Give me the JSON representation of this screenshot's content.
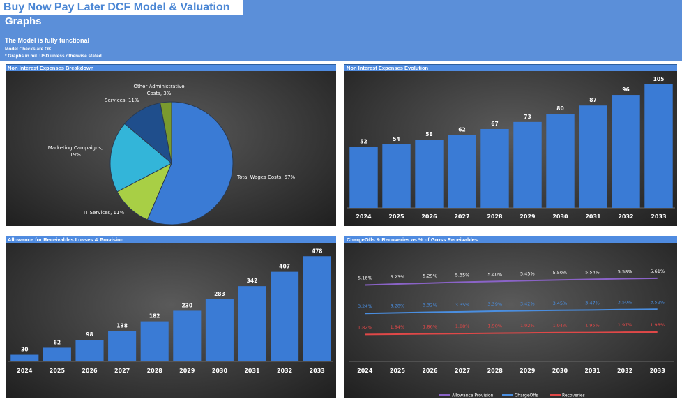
{
  "header": {
    "app_title": "Buy Now Pay Later DCF Model & Valuation",
    "sheet_title": "Graphs",
    "status": "The Model is fully functional",
    "checks": "Model Checks are OK",
    "units_note": "* Graphs in mil. USD unless otherwise stated"
  },
  "colors": {
    "header_band": "#5b8fd9",
    "panel_title": "#4f8be0",
    "bar": "#3a7bd5",
    "allowance_line": "#8a63c7",
    "chargeoffs_line": "#4a8ee0",
    "recoveries_line": "#e04848"
  },
  "panels": {
    "p1_title": "Non Interest Expenses Breakdown",
    "p2_title": "Non Interest Expenses Evolution",
    "p3_title": "Allowance for Receivables Losses & Provision",
    "p4_title": "ChargeOffs & Recoveries as % of Gross Receivables"
  },
  "chart_data": [
    {
      "type": "pie",
      "title": "Non Interest Expenses Breakdown",
      "slices": [
        {
          "label": "Total Wages Costs, 57%",
          "value": 57,
          "color": "#3a7bd5"
        },
        {
          "label": "IT Services, 11%",
          "value": 11,
          "color": "#a8cf45"
        },
        {
          "label": "Marketing Campaigns, 19%",
          "value": 19,
          "color": "#33b5d9"
        },
        {
          "label": "Services, 11%",
          "value": 11,
          "color": "#1f4e8c"
        },
        {
          "label": "Other Administrative Costs, 3%",
          "value": 3,
          "color": "#7a9a2e"
        }
      ]
    },
    {
      "type": "bar",
      "title": "Non Interest Expenses Evolution",
      "categories": [
        "2024",
        "2025",
        "2026",
        "2027",
        "2028",
        "2029",
        "2030",
        "2031",
        "2032",
        "2033"
      ],
      "values": [
        52,
        54,
        58,
        62,
        67,
        73,
        80,
        87,
        96,
        105
      ],
      "ylim": [
        0,
        115
      ]
    },
    {
      "type": "bar",
      "title": "Allowance for Receivables Losses & Provision",
      "categories": [
        "2024",
        "2025",
        "2026",
        "2027",
        "2028",
        "2029",
        "2030",
        "2031",
        "2032",
        "2033"
      ],
      "values": [
        30,
        62,
        98,
        138,
        182,
        230,
        283,
        342,
        407,
        478
      ],
      "ylim": [
        0,
        520
      ]
    },
    {
      "type": "line",
      "title": "ChargeOffs & Recoveries as % of Gross Receivables",
      "categories": [
        "2024",
        "2025",
        "2026",
        "2027",
        "2028",
        "2029",
        "2030",
        "2031",
        "2032",
        "2033"
      ],
      "series": [
        {
          "name": "Allowance Provision",
          "values": [
            5.16,
            5.23,
            5.29,
            5.35,
            5.4,
            5.45,
            5.5,
            5.54,
            5.58,
            5.61
          ],
          "labels": [
            "5.16%",
            "5.23%",
            "5.29%",
            "5.35%",
            "5.40%",
            "5.45%",
            "5.50%",
            "5.54%",
            "5.58%",
            "5.61%"
          ],
          "color": "#8a63c7",
          "label_color": "#ffffff"
        },
        {
          "name": "ChargeOffs",
          "values": [
            3.24,
            3.28,
            3.32,
            3.35,
            3.39,
            3.42,
            3.45,
            3.47,
            3.5,
            3.52
          ],
          "labels": [
            "3.24%",
            "3.28%",
            "3.32%",
            "3.35%",
            "3.39%",
            "3.42%",
            "3.45%",
            "3.47%",
            "3.50%",
            "3.52%"
          ],
          "color": "#4a8ee0",
          "label_color": "#4a8ee0"
        },
        {
          "name": "Recoveries",
          "values": [
            1.82,
            1.84,
            1.86,
            1.88,
            1.9,
            1.92,
            1.94,
            1.95,
            1.97,
            1.98
          ],
          "labels": [
            "1.82%",
            "1.84%",
            "1.86%",
            "1.88%",
            "1.90%",
            "1.92%",
            "1.94%",
            "1.95%",
            "1.97%",
            "1.98%"
          ],
          "color": "#e04848",
          "label_color": "#e04848"
        }
      ],
      "ylim": [
        0,
        6.5
      ],
      "legend": "bottom"
    }
  ]
}
